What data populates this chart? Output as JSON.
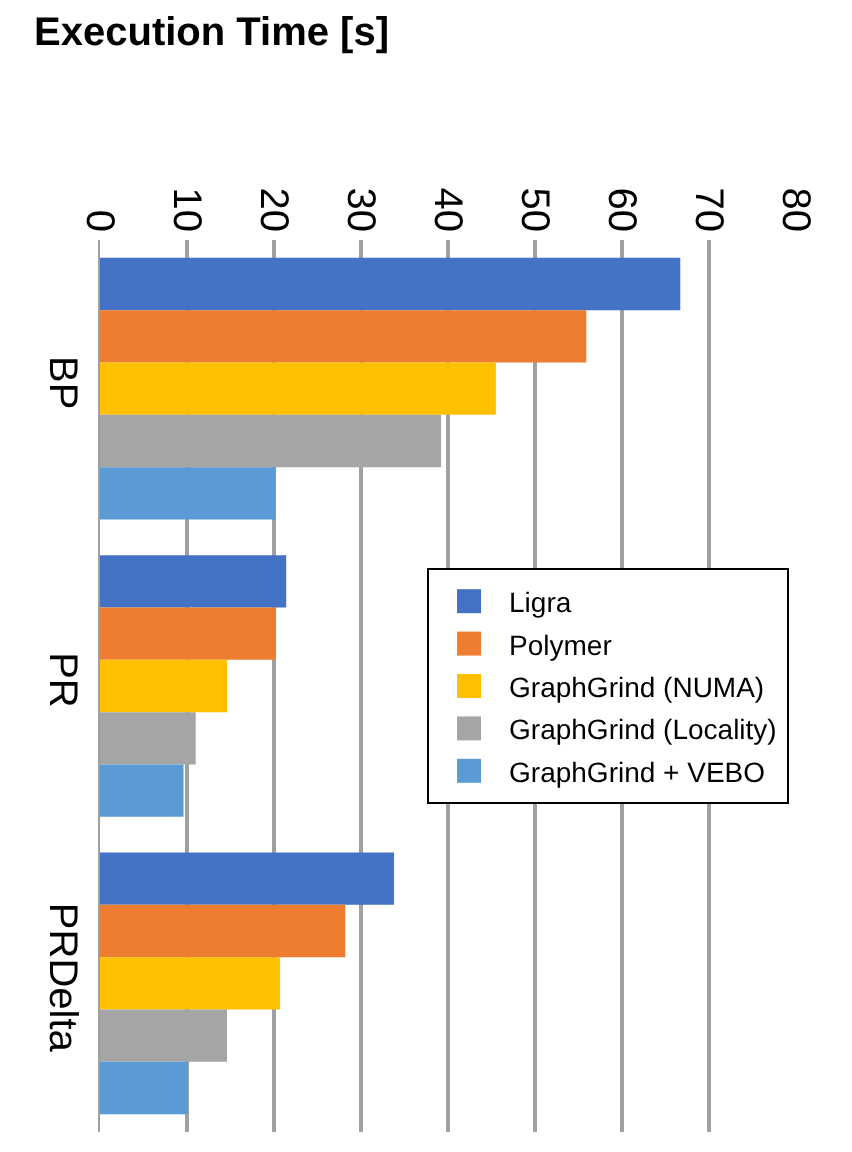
{
  "chart_data": {
    "type": "bar",
    "orientation": "horizontal",
    "title": "Execution Time [s]",
    "categories": [
      "BP",
      "PR",
      "PRDelta"
    ],
    "series": [
      {
        "name": "Ligra",
        "color": "#4472c4",
        "values": [
          66.7,
          21.4,
          33.8
        ]
      },
      {
        "name": "Polymer",
        "color": "#ed7d31",
        "values": [
          55.9,
          20.2,
          28.2
        ]
      },
      {
        "name": "GraphGrind (NUMA)",
        "color": "#ffc000",
        "values": [
          45.5,
          14.6,
          20.7
        ]
      },
      {
        "name": "GraphGrind (Locality)",
        "color": "#a5a5a5",
        "values": [
          39.2,
          11.0,
          14.6
        ]
      },
      {
        "name": "GraphGrind + VEBO",
        "color": "#5b9bd5",
        "values": [
          20.2,
          9.6,
          10.1
        ]
      }
    ],
    "xlim": [
      0,
      80
    ],
    "xticks": [
      0,
      10,
      20,
      30,
      40,
      50,
      60,
      70,
      80
    ],
    "grid": "x",
    "legend": "right"
  }
}
